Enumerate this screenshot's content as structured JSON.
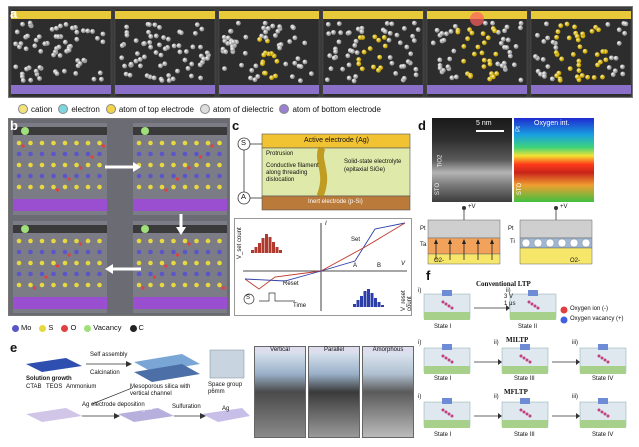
{
  "panel_a": {
    "letter": "a",
    "legend": [
      {
        "label": "cation",
        "color": "#f4e27a"
      },
      {
        "label": "electron",
        "color": "#7ed7e0"
      },
      {
        "label": "atom of top electrode",
        "color": "#f2d34a"
      },
      {
        "label": "atom of dielectric",
        "color": "#dddddd"
      },
      {
        "label": "atom of bottom electrode",
        "color": "#9b7fd0"
      }
    ]
  },
  "panel_b": {
    "letter": "b",
    "legend": [
      {
        "label": "Mo",
        "color": "#5a55c8"
      },
      {
        "label": "S",
        "color": "#e8d840"
      },
      {
        "label": "O",
        "color": "#e04040"
      },
      {
        "label": "Vacancy",
        "color": "#9fe07a"
      },
      {
        "label": "C",
        "color": "#222222"
      }
    ]
  },
  "panel_c": {
    "letter": "c",
    "active_electrode": "Active electrode (Ag)",
    "protrusion": "Protrusion",
    "conductive": "Conductive filament along threading dislocation",
    "electrolyte": "Solid-state electrolyte (epitaxial SiGe)",
    "inert": "Inert electrode (p-Si)",
    "s_label": "S",
    "a_label": "A",
    "v_label": "V",
    "i_label": "I",
    "set": "Set",
    "reset": "Reset",
    "vset_count": "V_set count",
    "vreset_count": "V_reset count",
    "time": "Time",
    "A": "A",
    "B": "B"
  },
  "panel_d": {
    "letter": "d",
    "scale": "5 nm",
    "oxygen": "Oxygen int.",
    "pt": "Pt",
    "tio2": "TiO2",
    "sto": "STO",
    "plus_v": "+V",
    "pt_lower": "Pt",
    "ta": "Ta",
    "ti": "Ti",
    "o2": "O2-"
  },
  "panel_e": {
    "letter": "e",
    "solution_growth": "Solution growth",
    "self_assembly": "Self assembly",
    "calcination": "Calcination",
    "mesoporous": "Mesoporous silica with vertical channel",
    "space_group": "Space group p6mm",
    "ag_dep": "Ag electrode deposition",
    "agS": "Ag2S",
    "sulfuration": "Sulfuration",
    "ag": "Ag",
    "ctab": "CTAB",
    "teos": "TEOS",
    "ammonium": "Ammonium",
    "tabs": [
      "Vertical",
      "Parallel",
      "Amorphous"
    ]
  },
  "panel_f": {
    "letter": "f",
    "conventional": "Conventional LTP",
    "miltp": "MILTP",
    "mfltp": "MFLTP",
    "pulse1": "3 V",
    "pulse1b": "1 μs",
    "oxygen_ion": "Oxygen ion (-)",
    "oxygen_vac": "Oxygen vacancy (+)",
    "state1": "State I",
    "state2": "State II",
    "state3": "State III",
    "state4": "State IV",
    "i": "i)",
    "ii": "ii)",
    "iii": "iii)"
  }
}
